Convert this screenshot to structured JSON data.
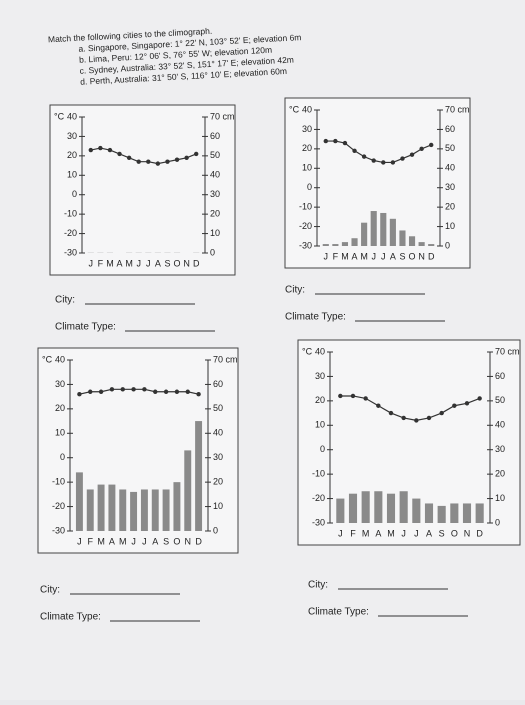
{
  "header": {
    "instruction": "Match the following cities to the climograph.",
    "options": [
      "a.  Singapore, Singapore: 1° 22' N, 103° 52' E; elevation 6m",
      "b.  Lima, Peru: 12° 06' S, 76° 55' W; elevation 120m",
      "c.  Sydney, Australia: 33° 52' S, 151° 17' E; elevation 42m",
      "d.  Perth, Australia: 31° 50' S, 116° 10' E; elevation 60m"
    ]
  },
  "chart_data": [
    {
      "type": "combo",
      "y_label": "°C",
      "categories": [
        "J",
        "F",
        "M",
        "A",
        "M",
        "J",
        "J",
        "A",
        "S",
        "O",
        "N",
        "D"
      ],
      "ylim": [
        -30,
        40
      ],
      "yticks": [
        -30,
        -20,
        -10,
        0,
        10,
        20,
        30,
        40
      ],
      "y2lim": [
        0,
        70
      ],
      "y2ticks": [
        0,
        10,
        20,
        30,
        40,
        50,
        60,
        {
          "value": 70,
          "label": "70 cm"
        }
      ],
      "series": [
        {
          "type": "line",
          "color": "#333333",
          "values": [
            23,
            24,
            23,
            21,
            19,
            17,
            17,
            16,
            17,
            18,
            19,
            21
          ]
        },
        {
          "type": "bar",
          "axis": "y2",
          "color": "#8a8a8a",
          "values": [
            0.1,
            0.1,
            0.1,
            0,
            0.1,
            0.1,
            0.1,
            0.1,
            0.1,
            0.1,
            0,
            0.1
          ]
        }
      ]
    },
    {
      "type": "combo",
      "y_label": "°C",
      "categories": [
        "J",
        "F",
        "M",
        "A",
        "M",
        "J",
        "J",
        "A",
        "S",
        "O",
        "N",
        "D"
      ],
      "ylim": [
        -30,
        40
      ],
      "yticks": [
        -30,
        -20,
        -10,
        0,
        10,
        20,
        30,
        40
      ],
      "y2lim": [
        0,
        70
      ],
      "y2ticks": [
        0,
        10,
        20,
        30,
        40,
        50,
        60,
        {
          "value": 70,
          "label": "70 cm"
        }
      ],
      "series": [
        {
          "type": "line",
          "color": "#333333",
          "values": [
            24,
            24,
            23,
            19,
            16,
            14,
            13,
            13,
            15,
            17,
            20,
            22
          ]
        },
        {
          "type": "bar",
          "axis": "y2",
          "color": "#8a8a8a",
          "values": [
            1,
            1,
            2,
            4,
            12,
            18,
            17,
            14,
            8,
            5,
            2,
            1
          ]
        }
      ]
    },
    {
      "type": "combo",
      "y_label": "°C",
      "categories": [
        "J",
        "F",
        "M",
        "A",
        "M",
        "J",
        "J",
        "A",
        "S",
        "O",
        "N",
        "D"
      ],
      "ylim": [
        -30,
        40
      ],
      "yticks": [
        -30,
        -20,
        -10,
        0,
        10,
        20,
        30,
        40
      ],
      "y2lim": [
        0,
        70
      ],
      "y2ticks": [
        0,
        10,
        20,
        30,
        40,
        50,
        60,
        {
          "value": 70,
          "label": "70 cm"
        }
      ],
      "series": [
        {
          "type": "line",
          "color": "#333333",
          "values": [
            26,
            27,
            27,
            28,
            28,
            28,
            28,
            27,
            27,
            27,
            27,
            26
          ]
        },
        {
          "type": "bar",
          "axis": "y2",
          "color": "#8a8a8a",
          "values": [
            24,
            17,
            19,
            19,
            17,
            16,
            17,
            17,
            17,
            20,
            33,
            45
          ]
        }
      ]
    },
    {
      "type": "combo",
      "y_label": "°C",
      "categories": [
        "J",
        "F",
        "M",
        "A",
        "M",
        "J",
        "J",
        "A",
        "S",
        "O",
        "N",
        "D"
      ],
      "ylim": [
        -30,
        40
      ],
      "yticks": [
        -30,
        -20,
        -10,
        0,
        10,
        20,
        30,
        40
      ],
      "y2lim": [
        0,
        70
      ],
      "y2ticks": [
        0,
        10,
        20,
        30,
        40,
        50,
        60,
        {
          "value": 70,
          "label": "70 cm"
        }
      ],
      "series": [
        {
          "type": "line",
          "color": "#333333",
          "values": [
            22,
            22,
            21,
            18,
            15,
            13,
            12,
            13,
            15,
            18,
            19,
            21
          ]
        },
        {
          "type": "bar",
          "axis": "y2",
          "color": "#8a8a8a",
          "values": [
            10,
            12,
            13,
            13,
            12,
            13,
            10,
            8,
            7,
            8,
            8,
            8
          ]
        }
      ]
    }
  ],
  "answers": [
    {
      "city": "City:",
      "climate": "Climate Type:"
    },
    {
      "city": "City:",
      "climate": "Climate Type:"
    },
    {
      "city": "City:",
      "climate": "Climate Type:"
    },
    {
      "city": "City:",
      "climate": "Climate Type:"
    }
  ]
}
